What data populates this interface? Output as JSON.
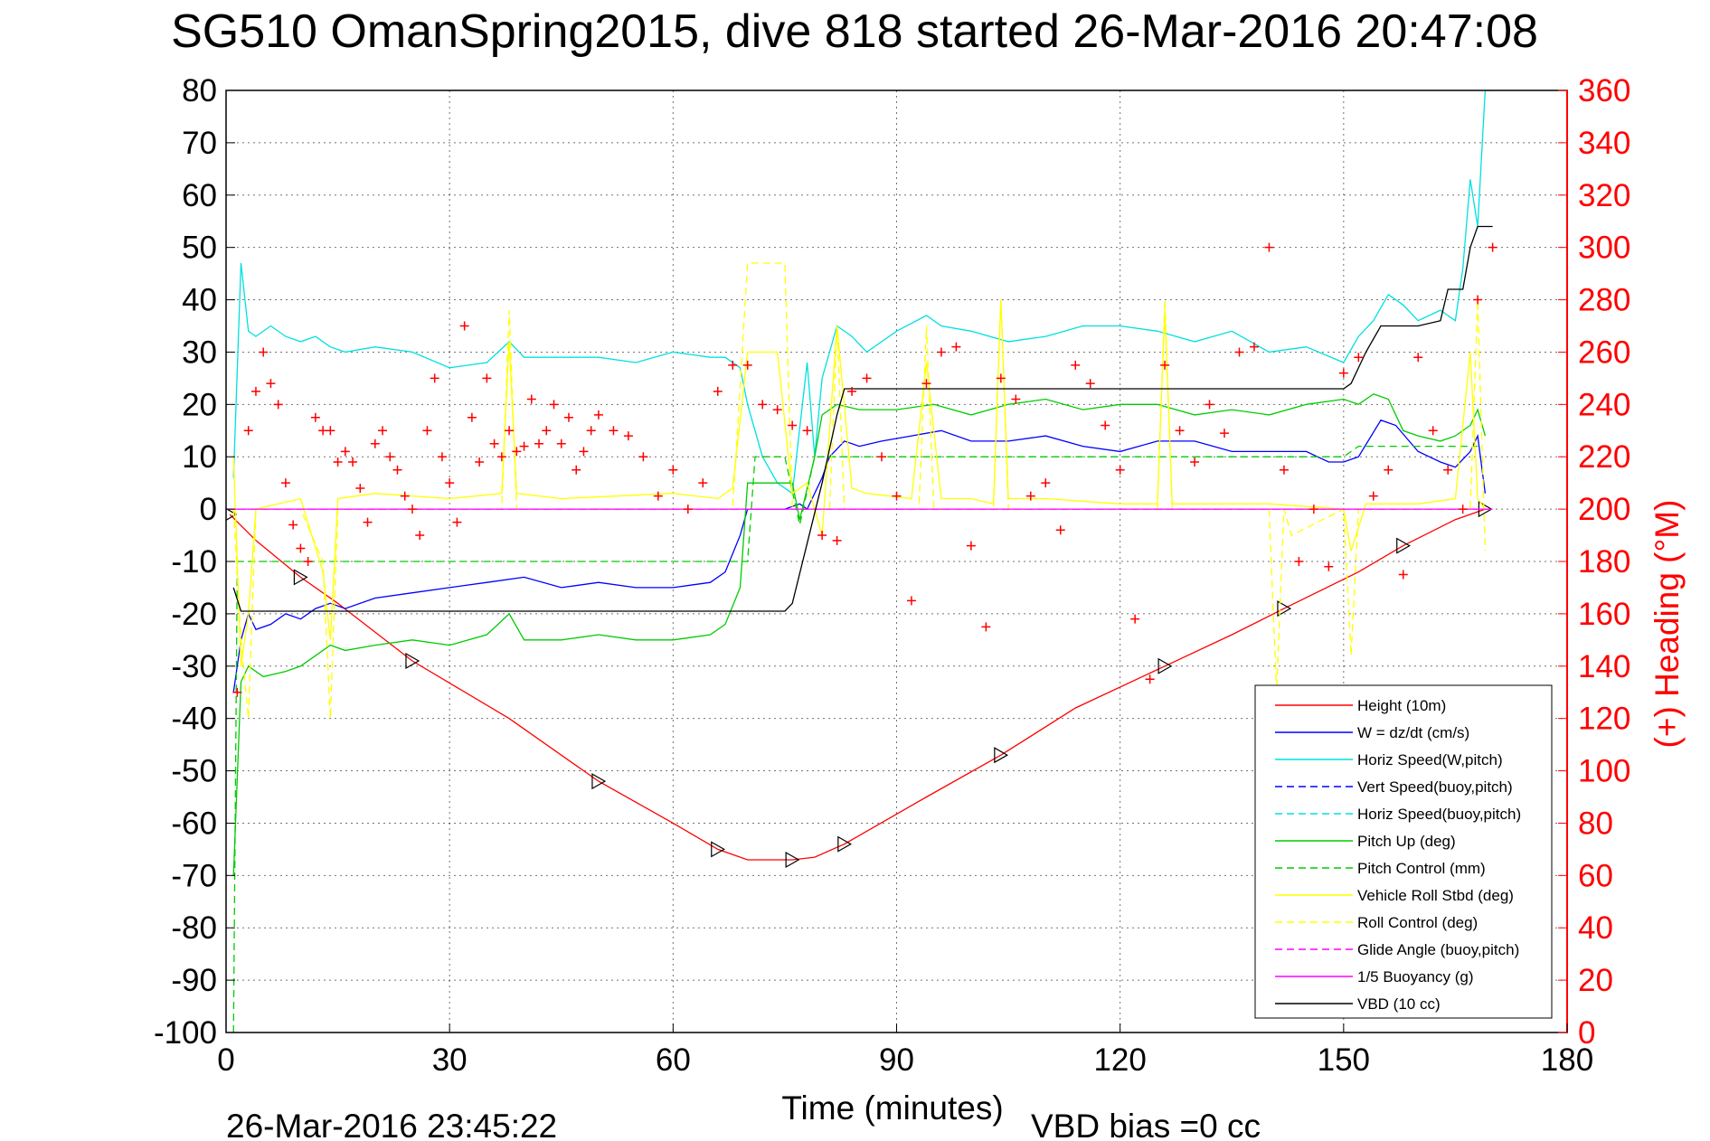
{
  "chart_data": {
    "type": "line",
    "title": "SG510 OmanSpring2015, dive 818 started 26-Mar-2016 20:47:08",
    "xlabel": "Time (minutes)",
    "ylabel": "",
    "y2label": "(+) Heading (°M)",
    "xlim": [
      0,
      180
    ],
    "ylim": [
      -100,
      80
    ],
    "y2lim": [
      0,
      360
    ],
    "xticks": [
      "0",
      "30",
      "60",
      "90",
      "120",
      "150",
      "180"
    ],
    "yticks": [
      "80",
      "70",
      "60",
      "50",
      "40",
      "30",
      "20",
      "10",
      "0",
      "-10",
      "-20",
      "-30",
      "-40",
      "-50",
      "-60",
      "-70",
      "-80",
      "-90",
      "-100"
    ],
    "y2ticks": [
      "360",
      "340",
      "320",
      "300",
      "280",
      "260",
      "240",
      "220",
      "200",
      "180",
      "160",
      "140",
      "120",
      "100",
      "80",
      "60",
      "40",
      "20",
      "0"
    ],
    "grid": true,
    "legend_position": "bottom-right",
    "footer_timestamp": "26-Mar-2016 23:45:22",
    "footer_note": "VBD bias =0 cc",
    "series": [
      {
        "name": "Height (10m)",
        "color": "#ff0000",
        "style": "solid",
        "x": [
          0.5,
          4,
          10,
          15,
          25,
          38,
          50,
          60,
          66,
          70,
          76,
          79,
          83,
          94,
          104,
          114,
          126,
          135,
          142,
          152,
          158,
          165,
          169
        ],
        "y": [
          -1,
          -6,
          -13,
          -18,
          -29,
          -40,
          -52,
          -60,
          -65,
          -67,
          -67,
          -66.5,
          -64,
          -55,
          -47,
          -38,
          -30,
          -24,
          -19,
          -12,
          -7,
          -2,
          0
        ]
      },
      {
        "name": "W = dz/dt (cm/s)",
        "color": "#0000ff",
        "style": "solid",
        "x": [
          1,
          2,
          3,
          4,
          6,
          8,
          10,
          12,
          14,
          16,
          20,
          25,
          30,
          35,
          40,
          45,
          50,
          55,
          60,
          65,
          67,
          69,
          70,
          72,
          75,
          77,
          78,
          80,
          81,
          83,
          85,
          88,
          92,
          96,
          100,
          105,
          110,
          115,
          120,
          125,
          130,
          135,
          140,
          145,
          148,
          150,
          152,
          155,
          157,
          160,
          163,
          165,
          167,
          168,
          169
        ],
        "y": [
          -35,
          -25,
          -20,
          -23,
          -22,
          -20,
          -21,
          -19,
          -18,
          -19,
          -17,
          -16,
          -15,
          -14,
          -13,
          -15,
          -14,
          -15,
          -15,
          -14,
          -12,
          -5,
          0,
          0,
          0,
          1,
          0,
          6,
          10,
          13,
          12,
          13,
          14,
          15,
          13,
          13,
          14,
          12,
          11,
          13,
          13,
          11,
          11,
          11,
          9,
          9,
          10,
          17,
          16,
          11,
          9,
          8,
          11,
          14,
          3
        ]
      },
      {
        "name": "Horiz Speed(W,pitch)",
        "color": "#00e0e0",
        "style": "solid",
        "x": [
          1,
          2,
          3,
          4,
          6,
          8,
          10,
          12,
          14,
          16,
          20,
          25,
          30,
          35,
          38,
          40,
          45,
          50,
          55,
          60,
          65,
          67,
          69,
          70,
          72,
          74,
          76,
          78,
          79,
          80,
          82,
          84,
          86,
          90,
          94,
          96,
          100,
          105,
          110,
          115,
          120,
          125,
          130,
          135,
          140,
          145,
          150,
          152,
          154,
          156,
          158,
          160,
          163,
          165,
          166,
          167,
          168,
          169,
          170
        ],
        "y": [
          6,
          47,
          34,
          33,
          35,
          33,
          32,
          33,
          31,
          30,
          31,
          30,
          27,
          28,
          32,
          29,
          29,
          29,
          28,
          30,
          29,
          29,
          27,
          20,
          10,
          5,
          3,
          28,
          10,
          25,
          35,
          33,
          30,
          34,
          37,
          35,
          34,
          32,
          33,
          35,
          35,
          34,
          32,
          34,
          30,
          31,
          28,
          33,
          36,
          41,
          39,
          36,
          38,
          36,
          46,
          63,
          54,
          80,
          80
        ]
      },
      {
        "name": "Vert Speed(buoy,pitch)",
        "color": "#0000ff",
        "style": "dash",
        "x": [],
        "y": []
      },
      {
        "name": "Horiz Speed(buoy,pitch)",
        "color": "#00e0e0",
        "style": "dash",
        "x": [],
        "y": []
      },
      {
        "name": "Pitch Up (deg)",
        "color": "#00cc00",
        "style": "solid",
        "x": [
          1,
          2,
          3,
          5,
          8,
          10,
          12,
          14,
          16,
          20,
          25,
          30,
          35,
          38,
          40,
          45,
          50,
          55,
          60,
          65,
          67,
          69,
          70,
          72,
          76,
          77,
          79,
          80,
          82,
          85,
          90,
          95,
          100,
          105,
          110,
          115,
          120,
          125,
          130,
          135,
          140,
          145,
          150,
          152,
          154,
          156,
          158,
          160,
          163,
          165,
          167,
          168,
          169
        ],
        "y": [
          -70,
          -33,
          -30,
          -32,
          -31,
          -30,
          -28,
          -26,
          -27,
          -26,
          -25,
          -26,
          -24,
          -20,
          -25,
          -25,
          -24,
          -25,
          -25,
          -24,
          -22,
          -15,
          5,
          5,
          5,
          -2,
          10,
          18,
          20,
          19,
          19,
          20,
          18,
          20,
          21,
          19,
          20,
          20,
          18,
          19,
          18,
          20,
          21,
          20,
          22,
          21,
          15,
          14,
          13,
          14,
          16,
          19,
          14
        ]
      },
      {
        "name": "Pitch Control (mm)",
        "color": "#00cc00",
        "style": "dash",
        "x": [
          1,
          1.5,
          3,
          10,
          30,
          50,
          65,
          70,
          71,
          75,
          77,
          79,
          82,
          100,
          120,
          150,
          152,
          168
        ],
        "y": [
          -100,
          -10,
          -10,
          -10,
          -10,
          -10,
          -10,
          -10,
          10,
          10,
          -3,
          10,
          10,
          10,
          10,
          10,
          12,
          12
        ]
      },
      {
        "name": "Vehicle Roll Stbd (deg)",
        "color": "#ffff00",
        "style": "solid",
        "x": [
          1,
          2,
          3,
          4,
          10,
          13,
          14,
          15,
          20,
          30,
          37,
          38,
          39,
          45,
          60,
          66,
          68,
          70,
          74,
          76,
          78,
          80,
          82,
          84,
          86,
          92,
          94,
          96,
          100,
          103,
          104,
          105,
          110,
          120,
          125,
          126,
          127,
          135,
          140,
          150,
          151,
          153,
          160,
          165,
          167,
          168,
          169
        ],
        "y": [
          10,
          -30,
          -20,
          0,
          2,
          -12,
          -25,
          2,
          3,
          2,
          3,
          32,
          3,
          2,
          3,
          2,
          4,
          30,
          30,
          3,
          5,
          -5,
          35,
          4,
          3,
          2,
          28,
          2,
          2,
          1,
          40,
          2,
          2,
          1,
          1,
          38,
          1,
          1,
          1,
          0,
          -8,
          1,
          1,
          2,
          30,
          2,
          0
        ]
      },
      {
        "name": "Roll Control (deg)",
        "color": "#ffff00",
        "style": "dash",
        "x": [
          1,
          2,
          3,
          4,
          10,
          13,
          14,
          15,
          20,
          37,
          38,
          39,
          60,
          68,
          70,
          75,
          76,
          78,
          81,
          82,
          83,
          90,
          93,
          94,
          95,
          103,
          104,
          105,
          125,
          126,
          127,
          140,
          141,
          142,
          143,
          150,
          151,
          152,
          153,
          160,
          167,
          168,
          169
        ],
        "y": [
          0,
          -25,
          -40,
          0,
          0,
          -10,
          -40,
          0,
          0,
          0,
          38,
          0,
          0,
          0,
          47,
          47,
          0,
          0,
          0,
          35,
          0,
          0,
          0,
          35,
          0,
          0,
          40,
          0,
          0,
          40,
          0,
          0,
          -35,
          0,
          -5,
          0,
          -28,
          0,
          0,
          0,
          0,
          40,
          -8
        ]
      },
      {
        "name": "Glide Angle (buoy,pitch)",
        "color": "#ff00ff",
        "style": "dash",
        "x": [
          0,
          170
        ],
        "y": [
          0,
          0
        ]
      },
      {
        "name": "1/5 Buoyancy (g)",
        "color": "#ff00ff",
        "style": "solid",
        "x": [
          0,
          170
        ],
        "y": [
          0,
          0
        ]
      },
      {
        "name": "VBD (10 cc)",
        "color": "#000000",
        "style": "solid",
        "x": [
          1,
          2,
          10,
          20,
          40,
          60,
          70,
          75,
          76,
          80,
          82,
          83,
          90,
          100,
          120,
          140,
          150,
          151,
          153,
          155,
          160,
          163,
          164,
          166,
          167,
          168,
          169,
          170
        ],
        "y": [
          -15,
          -19.5,
          -19.5,
          -19.5,
          -19.5,
          -19.5,
          -19.5,
          -19.5,
          -18,
          5,
          18,
          23,
          23,
          23,
          23,
          23,
          23,
          24,
          30,
          35,
          35,
          36,
          42,
          42,
          50,
          54,
          54,
          54
        ]
      },
      {
        "name": "Heading (°M)",
        "color": "#ff0000",
        "style": "plus",
        "axis": "y2",
        "x": [
          1.5,
          3,
          4,
          5,
          6,
          7,
          8,
          9,
          10,
          11,
          12,
          13,
          14,
          15,
          16,
          17,
          18,
          19,
          20,
          21,
          22,
          23,
          24,
          25,
          26,
          27,
          28,
          29,
          30,
          31,
          32,
          33,
          34,
          35,
          36,
          37,
          38,
          39,
          40,
          41,
          42,
          43,
          44,
          45,
          46,
          47,
          48,
          49,
          50,
          52,
          54,
          56,
          58,
          60,
          62,
          64,
          66,
          68,
          70,
          72,
          74,
          76,
          78,
          80,
          82,
          84,
          86,
          88,
          90,
          92,
          94,
          96,
          98,
          100,
          102,
          104,
          106,
          108,
          110,
          112,
          114,
          116,
          118,
          120,
          122,
          124,
          126,
          128,
          130,
          132,
          134,
          136,
          138,
          140,
          142,
          144,
          146,
          148,
          150,
          152,
          154,
          156,
          158,
          160,
          162,
          164,
          166,
          168,
          170
        ],
        "y": [
          130,
          230,
          245,
          260,
          248,
          240,
          210,
          194,
          185,
          180,
          235,
          230,
          230,
          218,
          222,
          218,
          208,
          195,
          225,
          230,
          220,
          215,
          205,
          200,
          190,
          230,
          250,
          220,
          210,
          195,
          270,
          235,
          218,
          250,
          225,
          220,
          230,
          222,
          224,
          242,
          225,
          230,
          240,
          225,
          235,
          215,
          222,
          230,
          236,
          230,
          228,
          220,
          205,
          215,
          200,
          210,
          245,
          255,
          255,
          240,
          238,
          232,
          230,
          190,
          188,
          245,
          250,
          220,
          205,
          165,
          248,
          260,
          262,
          186,
          155,
          250,
          242,
          205,
          210,
          192,
          255,
          248,
          232,
          215,
          158,
          135,
          255,
          230,
          218,
          240,
          229,
          260,
          262,
          300,
          215,
          180,
          200,
          178,
          252,
          258,
          205,
          215,
          175,
          258,
          230,
          215,
          200,
          280,
          300
        ]
      }
    ]
  }
}
